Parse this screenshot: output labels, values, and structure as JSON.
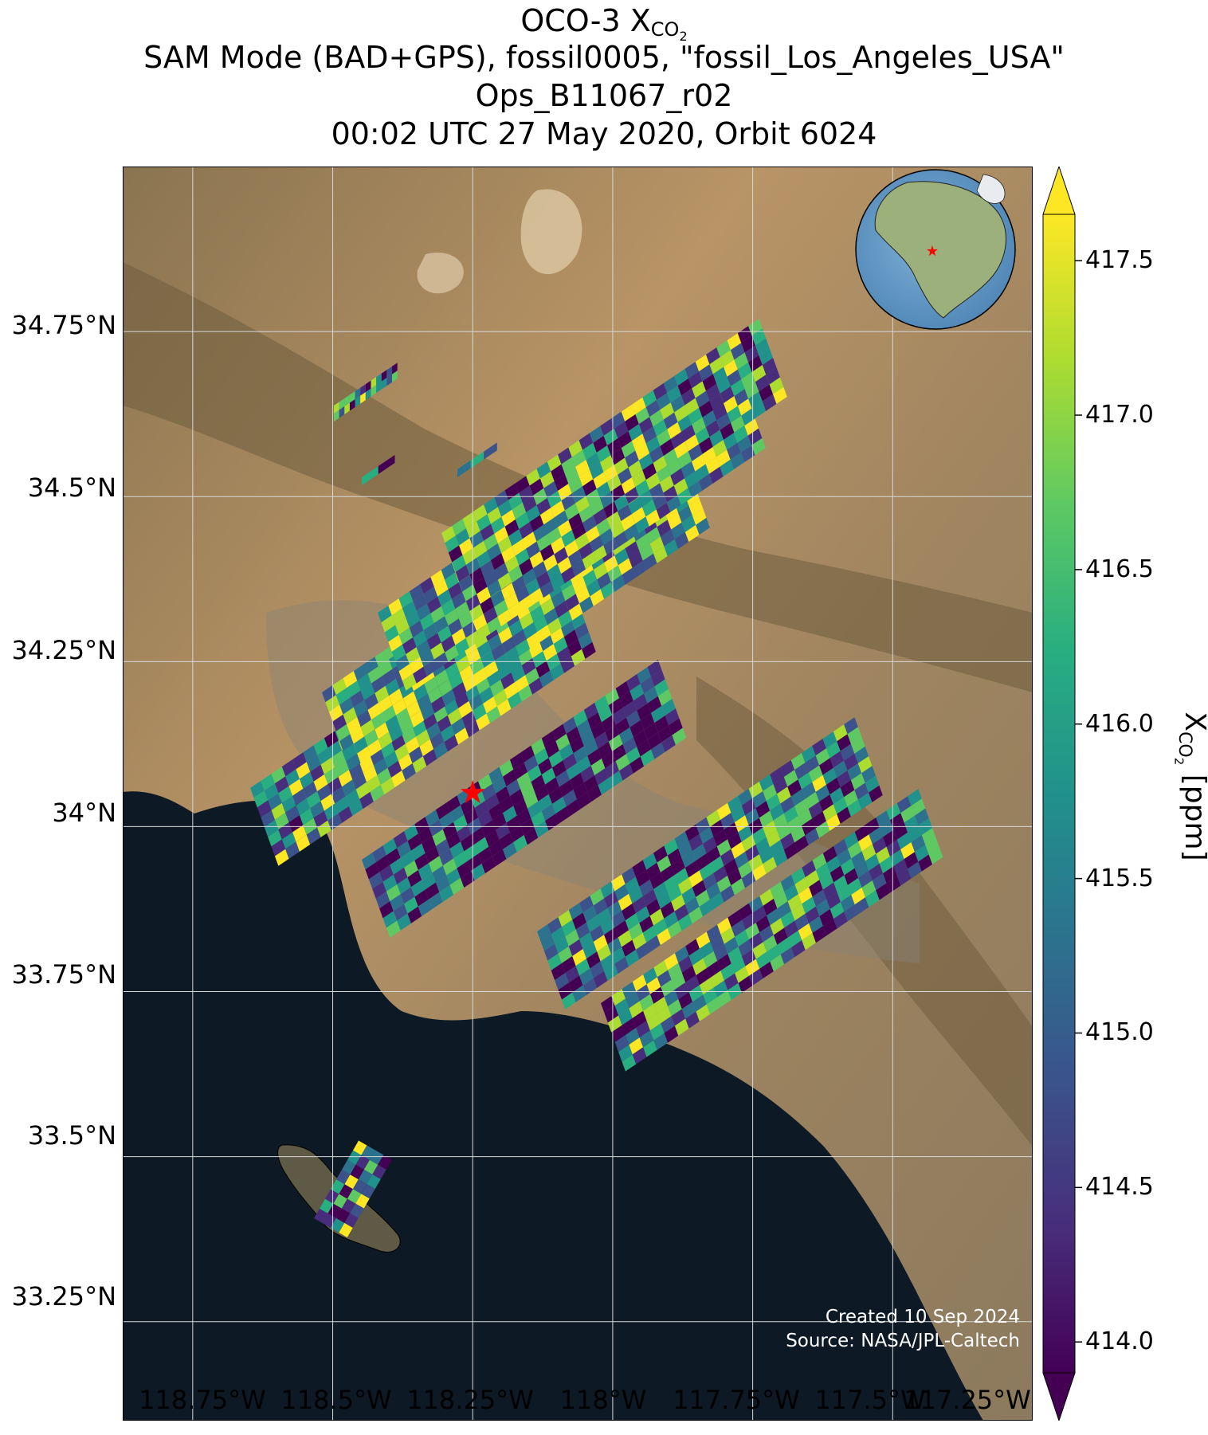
{
  "title": {
    "line1_prefix": "OCO-3 X",
    "line1_sub": "CO",
    "line1_sub2": "2",
    "line2": "SAM Mode (BAD+GPS), fossil0005, \"fossil_Los_Angeles_USA\"",
    "line3": "Ops_B11067_r02",
    "line4": "00:02 UTC 27 May 2020, Orbit 6024"
  },
  "map": {
    "lat_labels": [
      "34.75°N",
      "34.5°N",
      "34.25°N",
      "34°N",
      "33.75°N",
      "33.5°N",
      "33.25°N"
    ],
    "lat_values": [
      34.75,
      34.5,
      34.25,
      34.0,
      33.75,
      33.5,
      33.25
    ],
    "lon_labels": [
      "118.75°W",
      "118.5°W",
      "118.25°W",
      "118°W",
      "117.75°W",
      "117.5°W",
      "117.25°W"
    ],
    "lon_values": [
      -118.75,
      -118.5,
      -118.25,
      -118.0,
      -117.75,
      -117.5,
      -117.25
    ],
    "extent": {
      "lon_min": -118.875,
      "lon_max": -117.25,
      "lat_min": 33.1,
      "lat_max": 35.0
    },
    "target": {
      "lon": -118.25,
      "lat": 34.05,
      "color": "#ff0000"
    },
    "land_color": "#a88a63",
    "ocean_color": "#0d1a26",
    "globe_ocean_color": "#6fa0c8"
  },
  "colorbar": {
    "label_prefix": "X",
    "label_sub": "CO",
    "label_sub2": "2",
    "label_suffix": " [ppm]",
    "ticks": [
      "414.0",
      "414.5",
      "415.0",
      "415.5",
      "416.0",
      "416.5",
      "417.0",
      "417.5"
    ],
    "tick_values": [
      414.0,
      414.5,
      415.0,
      415.5,
      416.0,
      416.5,
      417.0,
      417.5
    ],
    "vmin": 413.9,
    "vmax": 417.65,
    "colormap": "viridis"
  },
  "credit": {
    "line1": "Created 10 Sep 2024",
    "line2": "Source: NASA/JPL-Caltech"
  }
}
